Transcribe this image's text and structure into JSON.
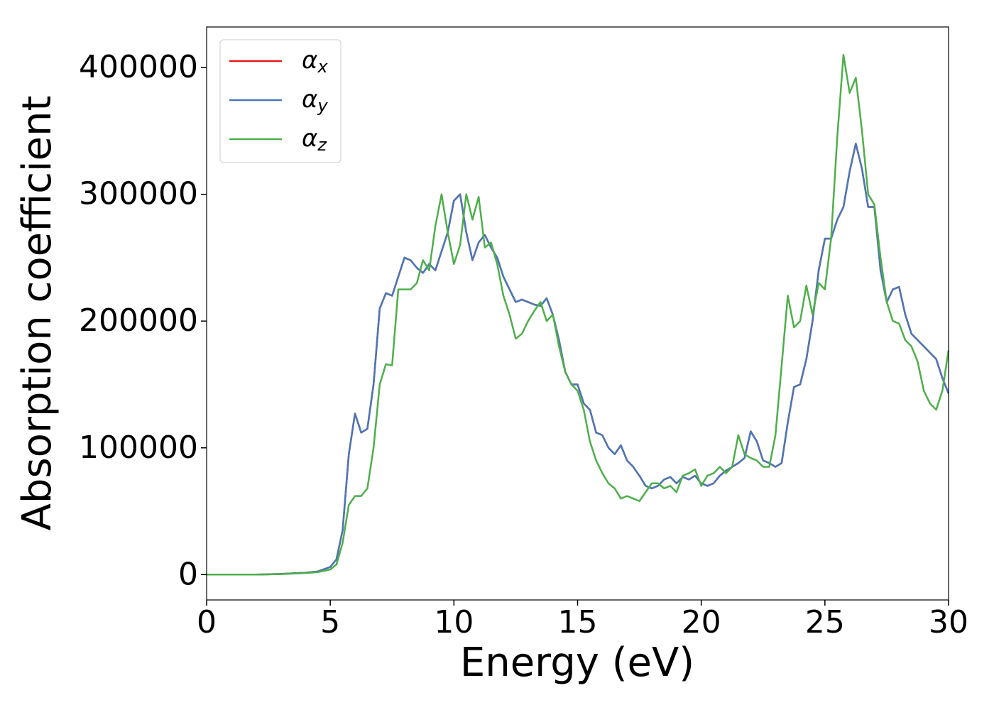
{
  "chart_data": {
    "type": "line",
    "xlabel": "Energy (eV)",
    "ylabel": "Absorption coefficient",
    "x": [
      0,
      1,
      2,
      3,
      4,
      4.5,
      5,
      5.25,
      5.5,
      5.75,
      6,
      6.25,
      6.5,
      6.75,
      7,
      7.25,
      7.5,
      7.75,
      8,
      8.25,
      8.5,
      8.75,
      9,
      9.25,
      9.5,
      9.75,
      10,
      10.25,
      10.5,
      10.75,
      11,
      11.25,
      11.5,
      11.75,
      12,
      12.25,
      12.5,
      12.75,
      13,
      13.25,
      13.5,
      13.75,
      14,
      14.25,
      14.5,
      14.75,
      15,
      15.25,
      15.5,
      15.75,
      16,
      16.25,
      16.5,
      16.75,
      17,
      17.25,
      17.5,
      17.75,
      18,
      18.25,
      18.5,
      18.75,
      19,
      19.25,
      19.5,
      19.75,
      20,
      20.25,
      20.5,
      20.75,
      21,
      21.25,
      21.5,
      21.75,
      22,
      22.25,
      22.5,
      22.75,
      23,
      23.25,
      23.5,
      23.75,
      24,
      24.25,
      24.5,
      24.75,
      25,
      25.25,
      25.5,
      25.75,
      26,
      26.25,
      26.5,
      26.75,
      27,
      27.25,
      27.5,
      27.75,
      28,
      28.25,
      28.5,
      28.75,
      29,
      29.25,
      29.5,
      29.75,
      30
    ],
    "series": [
      {
        "name": "αx",
        "color": "#e41a1c",
        "values": [
          0,
          0,
          0,
          500,
          1500,
          2500,
          6000,
          12000,
          35000,
          95000,
          127000,
          112000,
          115000,
          150000,
          210000,
          222000,
          220000,
          235000,
          250000,
          248000,
          242000,
          238000,
          245000,
          240000,
          255000,
          270000,
          295000,
          300000,
          270000,
          248000,
          262000,
          268000,
          258000,
          250000,
          235000,
          225000,
          215000,
          217000,
          215000,
          213000,
          212000,
          218000,
          205000,
          185000,
          160000,
          150000,
          150000,
          135000,
          130000,
          112000,
          110000,
          100000,
          95000,
          102000,
          90000,
          85000,
          78000,
          70000,
          68000,
          70000,
          75000,
          77000,
          72000,
          77000,
          75000,
          78000,
          72000,
          70000,
          72000,
          78000,
          82000,
          85000,
          88000,
          92000,
          113000,
          105000,
          90000,
          88000,
          85000,
          88000,
          120000,
          148000,
          150000,
          170000,
          200000,
          240000,
          265000,
          265000,
          280000,
          290000,
          318000,
          340000,
          320000,
          290000,
          290000,
          240000,
          215000,
          225000,
          227000,
          205000,
          190000,
          185000,
          180000,
          175000,
          170000,
          155000,
          143000
        ]
      },
      {
        "name": "αy",
        "color": "#4878b8",
        "values": [
          0,
          0,
          0,
          500,
          1500,
          2500,
          6000,
          12000,
          35000,
          95000,
          127000,
          112000,
          115000,
          150000,
          210000,
          222000,
          220000,
          235000,
          250000,
          248000,
          242000,
          238000,
          245000,
          240000,
          255000,
          270000,
          295000,
          300000,
          270000,
          248000,
          262000,
          268000,
          258000,
          250000,
          235000,
          225000,
          215000,
          217000,
          215000,
          213000,
          212000,
          218000,
          205000,
          185000,
          160000,
          150000,
          150000,
          135000,
          130000,
          112000,
          110000,
          100000,
          95000,
          102000,
          90000,
          85000,
          78000,
          70000,
          68000,
          70000,
          75000,
          77000,
          72000,
          77000,
          75000,
          78000,
          72000,
          70000,
          72000,
          78000,
          82000,
          85000,
          88000,
          92000,
          113000,
          105000,
          90000,
          88000,
          85000,
          88000,
          120000,
          148000,
          150000,
          170000,
          200000,
          240000,
          265000,
          265000,
          280000,
          290000,
          318000,
          340000,
          320000,
          290000,
          290000,
          240000,
          215000,
          225000,
          227000,
          205000,
          190000,
          185000,
          180000,
          175000,
          170000,
          155000,
          143000
        ]
      },
      {
        "name": "αz",
        "color": "#4daf4a",
        "values": [
          0,
          0,
          0,
          400,
          1200,
          2000,
          4000,
          8000,
          25000,
          55000,
          62000,
          62000,
          68000,
          100000,
          150000,
          166000,
          165000,
          225000,
          225000,
          225000,
          230000,
          248000,
          240000,
          275000,
          300000,
          270000,
          245000,
          260000,
          300000,
          280000,
          298000,
          258000,
          262000,
          245000,
          220000,
          205000,
          186000,
          190000,
          200000,
          208000,
          215000,
          200000,
          205000,
          180000,
          160000,
          150000,
          145000,
          130000,
          105000,
          90000,
          80000,
          72000,
          68000,
          60000,
          62000,
          60000,
          58000,
          65000,
          72000,
          72000,
          68000,
          70000,
          65000,
          78000,
          80000,
          83000,
          70000,
          78000,
          80000,
          85000,
          80000,
          85000,
          110000,
          95000,
          92000,
          90000,
          85000,
          85000,
          110000,
          165000,
          220000,
          195000,
          200000,
          228000,
          205000,
          230000,
          225000,
          265000,
          345000,
          410000,
          380000,
          392000,
          350000,
          300000,
          292000,
          250000,
          215000,
          200000,
          198000,
          185000,
          180000,
          168000,
          145000,
          135000,
          130000,
          145000,
          177000
        ]
      }
    ],
    "xlim": [
      0,
      30
    ],
    "xticks": [
      0,
      5,
      10,
      15,
      20,
      25,
      30
    ],
    "ylim": [
      -20000,
      432000
    ],
    "yticks": [
      0,
      100000,
      200000,
      300000,
      400000
    ],
    "grid": false,
    "legend": "upper left"
  }
}
